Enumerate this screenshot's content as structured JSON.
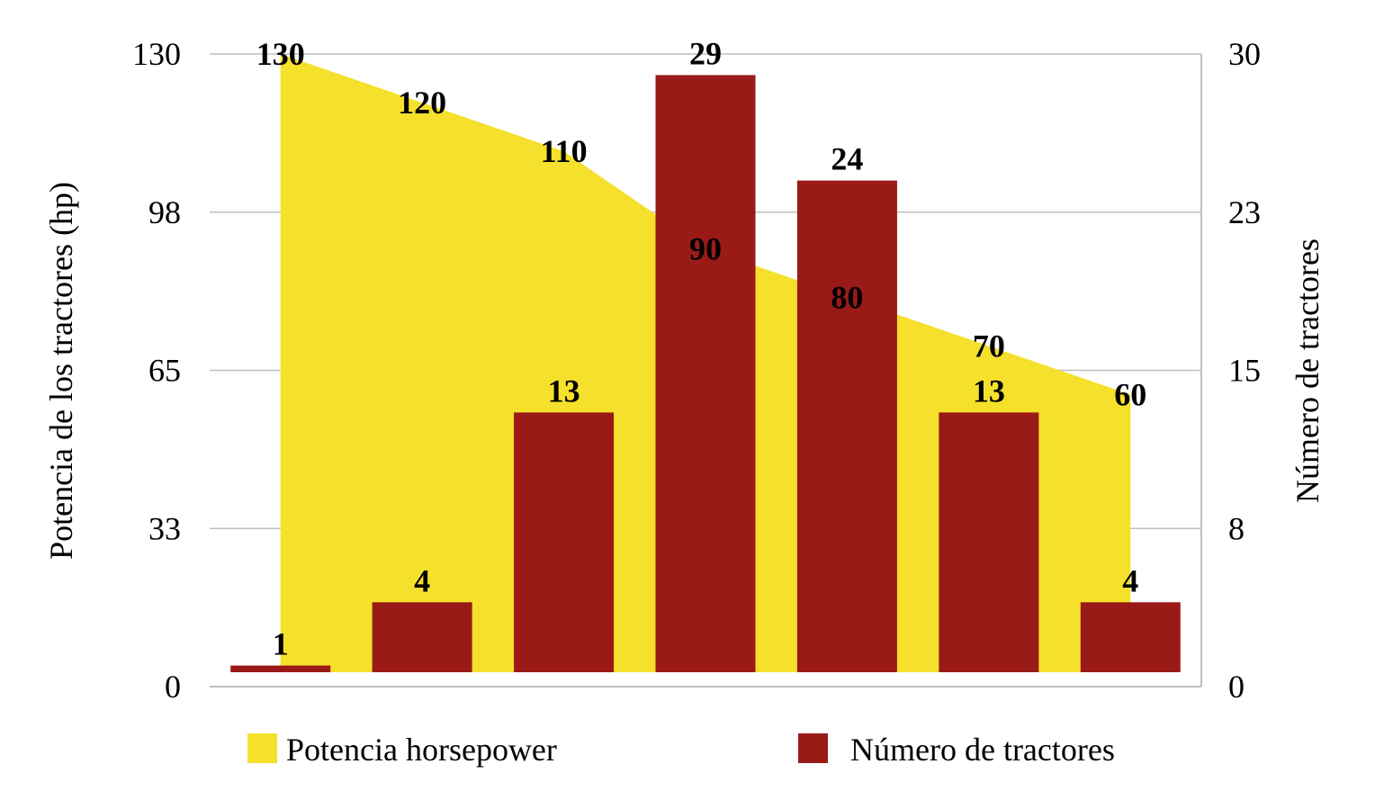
{
  "chart_data": {
    "type": "bar",
    "categories": [
      "",
      "",
      "",
      "",
      "",
      "",
      ""
    ],
    "series": [
      {
        "name": "Potencia horsepower",
        "kind": "area",
        "axis": "left",
        "color": "#F5E02B",
        "values": [
          130,
          120,
          110,
          90,
          80,
          70,
          60
        ],
        "labels": [
          "130",
          "120",
          "110",
          "90",
          "80",
          "70",
          "60"
        ]
      },
      {
        "name": "Número de tractores",
        "kind": "bar",
        "axis": "right",
        "color": "#9A1A17",
        "values": [
          1,
          4,
          13,
          29,
          24,
          13,
          4
        ],
        "labels": [
          "1",
          "4",
          "13",
          "29",
          "24",
          "13",
          "4"
        ]
      }
    ],
    "y_left": {
      "label": "Potencia de los tractores (hp)",
      "ticks": [
        "0",
        "33",
        "65",
        "98",
        "130"
      ],
      "range": [
        0,
        130
      ]
    },
    "y_right": {
      "label": "Número de tractores",
      "ticks": [
        "0",
        "8",
        "15",
        "23",
        "30"
      ],
      "range": [
        0,
        30
      ]
    },
    "grid": true,
    "legend": "bottom"
  }
}
